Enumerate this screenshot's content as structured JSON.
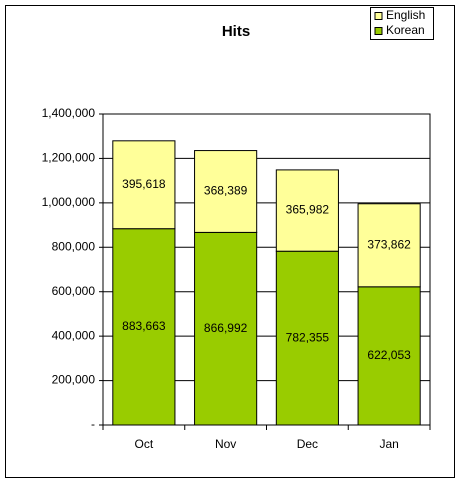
{
  "chart_data": {
    "type": "stacked_bar",
    "title": "Hits",
    "categories": [
      "Oct",
      "Nov",
      "Dec",
      "Jan"
    ],
    "series": [
      {
        "name": "Korean",
        "color": "#99cc00",
        "values": [
          883663,
          866992,
          782355,
          622053
        ],
        "value_labels": [
          "883,663",
          "866,992",
          "782,355",
          "622,053"
        ]
      },
      {
        "name": "English",
        "color": "#ffff99",
        "values": [
          395618,
          368389,
          365982,
          373862
        ],
        "value_labels": [
          "395,618",
          "368,389",
          "365,982",
          "373,862"
        ]
      }
    ],
    "ylim": [
      0,
      1400000
    ],
    "yticks": [
      {
        "value": 0,
        "label": "-"
      },
      {
        "value": 200000,
        "label": "200,000"
      },
      {
        "value": 400000,
        "label": "400,000"
      },
      {
        "value": 600000,
        "label": "600,000"
      },
      {
        "value": 800000,
        "label": "800,000"
      },
      {
        "value": 1000000,
        "label": "1,000,000"
      },
      {
        "value": 1200000,
        "label": "1,200,000"
      },
      {
        "value": 1400000,
        "label": "1,400,000"
      }
    ],
    "grid": true,
    "legend": "top-right"
  }
}
